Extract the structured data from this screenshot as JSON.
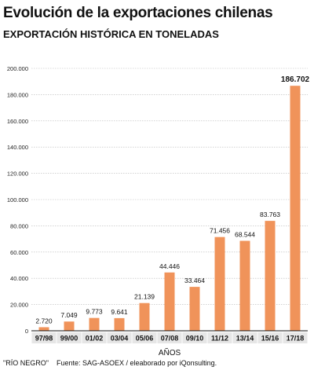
{
  "header": {
    "title": "Evolución de la exportaciones chilenas",
    "subtitle": "EXPORTACIÓN HISTÓRICA EN TONELADAS"
  },
  "footer": {
    "credit": "\"RÍO NEGRO\"",
    "source": "Fuente: SAG-ASOEX / eleaborado por iQonsulting."
  },
  "colors": {
    "bar": "#F0935A",
    "grid": "#B8B8B8",
    "axis": "#111111",
    "label_bg": "#E6E6E6"
  },
  "chart_data": {
    "type": "bar",
    "title": "Evolución de la exportaciones chilenas",
    "subtitle": "EXPORTACIÓN HISTÓRICA EN TONELADAS",
    "xlabel": "AÑOS",
    "ylabel": "",
    "ylim": [
      0,
      200000
    ],
    "yticks": [
      0,
      20000,
      40000,
      60000,
      80000,
      100000,
      120000,
      140000,
      160000,
      180000,
      200000
    ],
    "ytick_labels": [
      "0",
      "20.000",
      "40.000",
      "60.000",
      "80.000",
      "100.000",
      "120.000",
      "140.000",
      "160.000",
      "180.000",
      "200.000"
    ],
    "categories": [
      "97/98",
      "99/00",
      "01/02",
      "03/04",
      "05/06",
      "07/08",
      "09/10",
      "11/12",
      "13/14",
      "15/16",
      "17/18"
    ],
    "values": [
      2720,
      7049,
      9773,
      9641,
      21139,
      44446,
      33464,
      71456,
      68544,
      83763,
      186702
    ],
    "value_labels": [
      "2.720",
      "7.049",
      "9.773",
      "9.641",
      "21.139",
      "44.446",
      "33.464",
      "71.456",
      "68.544",
      "83.763",
      "186.702"
    ],
    "grid": true,
    "legend": "none"
  }
}
